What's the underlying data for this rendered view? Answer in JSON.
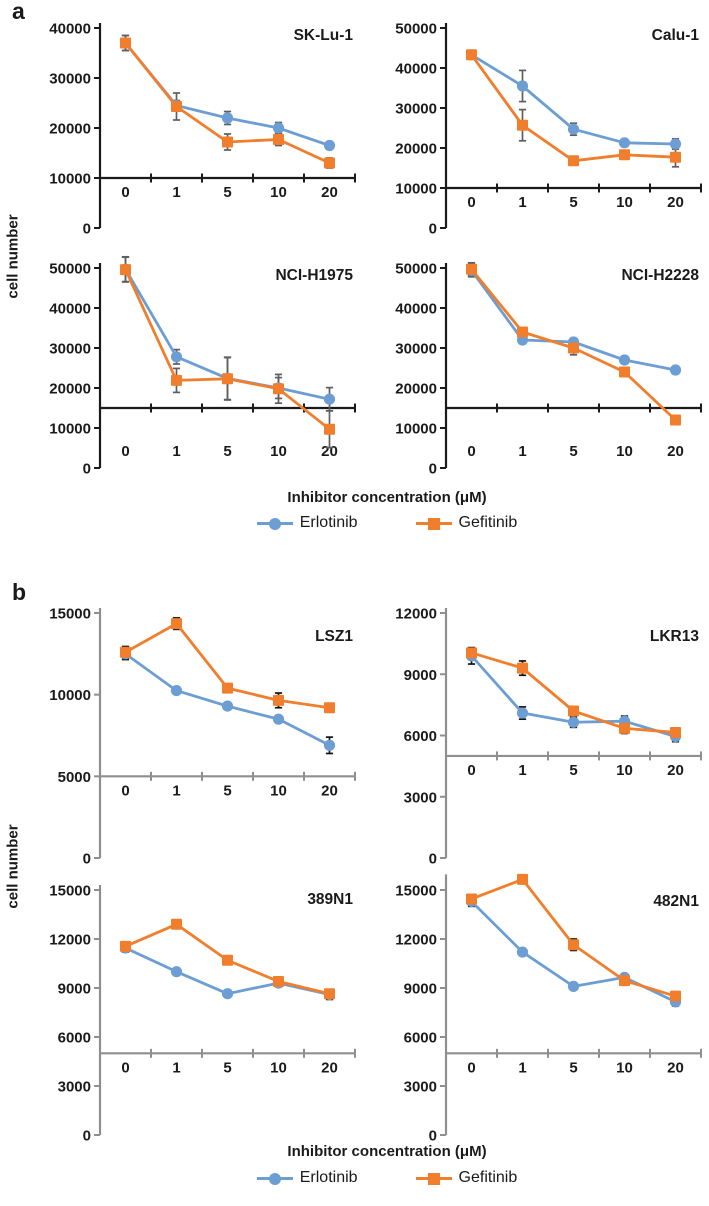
{
  "figure": {
    "panel_a": {
      "label": "a",
      "y_axis_label": "cell number",
      "x_axis_label": "Inhibitor concentration (μM)",
      "legend": [
        {
          "name": "Erlotinib",
          "color": "#6C9ED4",
          "marker": "circle"
        },
        {
          "name": "Gefitinib",
          "color": "#F07E2D",
          "marker": "square"
        }
      ]
    },
    "panel_b": {
      "label": "b",
      "y_axis_label": "cell number",
      "x_axis_label": "Inhibitor concentration (μM)",
      "legend": [
        {
          "name": "Erlotinib",
          "color": "#6C9ED4",
          "marker": "circle"
        },
        {
          "name": "Gefitinib",
          "color": "#F07E2D",
          "marker": "square"
        }
      ]
    },
    "colors": {
      "erlotinib": "#6C9ED4",
      "gefitinib": "#F07E2D",
      "axis_panel_a": "#1a1a1a",
      "axis_panel_b": "#8f8f8f",
      "error_bar_panel_a": "#5f5f5f",
      "error_bar_panel_b": "#141414"
    }
  },
  "chart_data": [
    {
      "type": "line",
      "panel": "a",
      "title": "SK-Lu-1",
      "categories": [
        "0",
        "1",
        "5",
        "10",
        "20"
      ],
      "xlabel": "Inhibitor concentration (μM)",
      "ylabel": "cell number",
      "ylim": [
        0,
        40000
      ],
      "y_ticks": [
        0,
        10000,
        20000,
        30000,
        40000
      ],
      "x_axis_crosses_at": 10000,
      "x_tick_label_position": "next-to-axis",
      "grid": false,
      "legend_position": "bottom",
      "series": [
        {
          "name": "Erlotinib",
          "marker": "circle",
          "color": "#6C9ED4",
          "values": [
            37000,
            24500,
            22000,
            20000,
            16500
          ],
          "errors": [
            1500,
            1000,
            1300,
            1100,
            700
          ]
        },
        {
          "name": "Gefitinib",
          "marker": "square",
          "color": "#F07E2D",
          "values": [
            37000,
            24300,
            17200,
            17700,
            13000
          ],
          "errors": [
            1500,
            2700,
            1600,
            1200,
            1000
          ]
        }
      ]
    },
    {
      "type": "line",
      "panel": "a",
      "title": "Calu-1",
      "categories": [
        "0",
        "1",
        "5",
        "10",
        "20"
      ],
      "xlabel": "Inhibitor concentration (μM)",
      "ylabel": "cell number",
      "ylim": [
        0,
        50000
      ],
      "y_ticks": [
        0,
        10000,
        20000,
        30000,
        40000,
        50000
      ],
      "x_axis_crosses_at": 10000,
      "x_tick_label_position": "next-to-axis",
      "grid": false,
      "legend_position": "bottom",
      "series": [
        {
          "name": "Erlotinib",
          "marker": "circle",
          "color": "#6C9ED4",
          "values": [
            43300,
            35500,
            24700,
            21300,
            21000
          ],
          "errors": [
            600,
            3900,
            1500,
            600,
            1300
          ]
        },
        {
          "name": "Gefitinib",
          "marker": "square",
          "color": "#F07E2D",
          "values": [
            43300,
            25700,
            16800,
            18300,
            17700
          ],
          "errors": [
            600,
            3900,
            400,
            400,
            2400
          ]
        }
      ]
    },
    {
      "type": "line",
      "panel": "a",
      "title": "NCI-H1975",
      "categories": [
        "0",
        "1",
        "5",
        "10",
        "20"
      ],
      "xlabel": "Inhibitor concentration (μM)",
      "ylabel": "cell number",
      "ylim": [
        0,
        50000
      ],
      "y_ticks": [
        0,
        10000,
        20000,
        30000,
        40000,
        50000
      ],
      "x_axis_crosses_at": 15000,
      "x_tick_label_position": "low",
      "grid": false,
      "legend_position": "bottom",
      "series": [
        {
          "name": "Erlotinib",
          "marker": "circle",
          "color": "#6C9ED4",
          "values": [
            49700,
            27800,
            22400,
            20000,
            17200
          ],
          "errors": [
            3100,
            1800,
            5300,
            2600,
            2900
          ]
        },
        {
          "name": "Gefitinib",
          "marker": "square",
          "color": "#F07E2D",
          "values": [
            49600,
            21900,
            22300,
            19800,
            9700
          ],
          "errors": [
            3100,
            3000,
            5300,
            3600,
            4600
          ]
        }
      ]
    },
    {
      "type": "line",
      "panel": "a",
      "title": "NCI-H2228",
      "categories": [
        "0",
        "1",
        "5",
        "10",
        "20"
      ],
      "xlabel": "Inhibitor concentration (μM)",
      "ylabel": "cell number",
      "ylim": [
        0,
        50000
      ],
      "y_ticks": [
        0,
        10000,
        20000,
        30000,
        40000,
        50000
      ],
      "x_axis_crosses_at": 15000,
      "x_tick_label_position": "low",
      "grid": false,
      "legend_position": "bottom",
      "series": [
        {
          "name": "Erlotinib",
          "marker": "circle",
          "color": "#6C9ED4",
          "values": [
            49400,
            32000,
            31500,
            27000,
            24500
          ],
          "errors": [
            1600,
            300,
            400,
            300,
            300
          ]
        },
        {
          "name": "Gefitinib",
          "marker": "square",
          "color": "#F07E2D",
          "values": [
            49700,
            34000,
            30000,
            24000,
            12000
          ],
          "errors": [
            1600,
            300,
            1700,
            300,
            300
          ]
        }
      ]
    },
    {
      "type": "line",
      "panel": "b",
      "title": "LSZ1",
      "categories": [
        "0",
        "1",
        "5",
        "10",
        "20"
      ],
      "xlabel": "Inhibitor concentration (μM)",
      "ylabel": "cell number",
      "ylim": [
        0,
        15000
      ],
      "y_ticks": [
        0,
        5000,
        10000,
        15000
      ],
      "x_axis_crosses_at": 5000,
      "x_tick_label_position": "next-to-axis",
      "grid": false,
      "legend_position": "bottom",
      "series": [
        {
          "name": "Erlotinib",
          "marker": "circle",
          "color": "#6C9ED4",
          "values": [
            12500,
            10250,
            9300,
            8500,
            6900
          ],
          "errors": [
            350,
            150,
            150,
            150,
            500
          ]
        },
        {
          "name": "Gefitinib",
          "marker": "square",
          "color": "#F07E2D",
          "values": [
            12600,
            14350,
            10400,
            9650,
            9200
          ],
          "errors": [
            350,
            350,
            150,
            450,
            150
          ]
        }
      ]
    },
    {
      "type": "line",
      "panel": "b",
      "title": "LKR13",
      "categories": [
        "0",
        "1",
        "5",
        "10",
        "20"
      ],
      "xlabel": "Inhibitor concentration (μM)",
      "ylabel": "cell number",
      "ylim": [
        0,
        12000
      ],
      "y_ticks": [
        0,
        3000,
        6000,
        9000,
        12000
      ],
      "x_axis_crosses_at": 5000,
      "x_tick_label_position": "next-to-axis",
      "grid": false,
      "legend_position": "bottom",
      "series": [
        {
          "name": "Erlotinib",
          "marker": "circle",
          "color": "#6C9ED4",
          "values": [
            9900,
            7100,
            6650,
            6700,
            5950
          ],
          "errors": [
            400,
            300,
            250,
            250,
            250
          ]
        },
        {
          "name": "Gefitinib",
          "marker": "square",
          "color": "#F07E2D",
          "values": [
            10050,
            9300,
            7200,
            6350,
            6150
          ],
          "errors": [
            250,
            350,
            200,
            250,
            150
          ]
        }
      ]
    },
    {
      "type": "line",
      "panel": "b",
      "title": "389N1",
      "categories": [
        "0",
        "1",
        "5",
        "10",
        "20"
      ],
      "xlabel": "Inhibitor concentration (μM)",
      "ylabel": "cell number",
      "ylim": [
        0,
        15000
      ],
      "y_ticks": [
        0,
        3000,
        6000,
        9000,
        12000,
        15000
      ],
      "x_axis_crosses_at": 5000,
      "x_tick_label_position": "next-to-axis",
      "grid": false,
      "legend_position": "bottom",
      "series": [
        {
          "name": "Erlotinib",
          "marker": "circle",
          "color": "#6C9ED4",
          "values": [
            11450,
            10000,
            8650,
            9300,
            8600
          ],
          "errors": [
            250,
            100,
            100,
            100,
            300
          ]
        },
        {
          "name": "Gefitinib",
          "marker": "square",
          "color": "#F07E2D",
          "values": [
            11550,
            12900,
            10700,
            9400,
            8650
          ],
          "errors": [
            150,
            100,
            250,
            150,
            100
          ]
        }
      ]
    },
    {
      "type": "line",
      "panel": "b",
      "title": "482N1",
      "categories": [
        "0",
        "1",
        "5",
        "10",
        "20"
      ],
      "xlabel": "Inhibitor concentration (μM)",
      "ylabel": "cell number",
      "ylim": [
        0,
        15000
      ],
      "y_ticks": [
        0,
        3000,
        6000,
        9000,
        12000,
        15000
      ],
      "x_axis_crosses_at": 5000,
      "x_tick_label_position": "next-to-axis",
      "grid": false,
      "legend_position": "bottom",
      "series": [
        {
          "name": "Erlotinib",
          "marker": "circle",
          "color": "#6C9ED4",
          "values": [
            14300,
            11200,
            9100,
            9650,
            8150
          ],
          "errors": [
            300,
            100,
            200,
            100,
            250
          ]
        },
        {
          "name": "Gefitinib",
          "marker": "square",
          "color": "#F07E2D",
          "values": [
            14450,
            15650,
            11650,
            9450,
            8500
          ],
          "errors": [
            200,
            150,
            350,
            150,
            150
          ]
        }
      ]
    }
  ]
}
